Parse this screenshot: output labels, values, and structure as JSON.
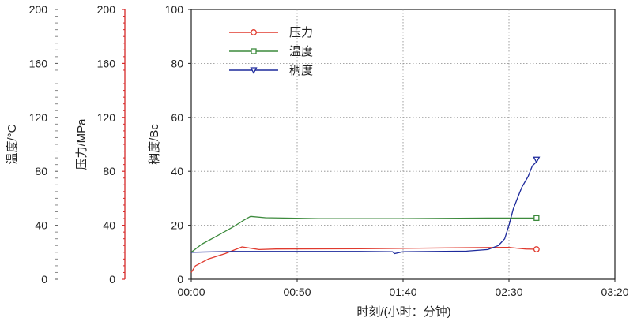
{
  "chart_data": {
    "type": "line",
    "xlabel": "时刻/(小时：分钟)",
    "x_ticks": [
      "00:00",
      "00:50",
      "01:40",
      "02:30",
      "03:20"
    ],
    "xlim_minutes": [
      0,
      200
    ],
    "axes": {
      "temperature": {
        "label": "温度/°C",
        "ylim": [
          0,
          200
        ],
        "ticks": [
          "0",
          "40",
          "80",
          "120",
          "160",
          "200"
        ],
        "color": "#444444"
      },
      "pressure": {
        "label": "压力/MPa",
        "ylim": [
          0,
          200
        ],
        "ticks": [
          "0",
          "40",
          "80",
          "120",
          "160",
          "200"
        ],
        "color": "#d62a2a"
      },
      "consistency": {
        "label": "稠度/Bc",
        "ylim": [
          0,
          100
        ],
        "ticks": [
          "0",
          "20",
          "40",
          "60",
          "80",
          "100"
        ],
        "color": "#1f1f1f"
      }
    },
    "grid": true,
    "legend_position": "top-left",
    "series": [
      {
        "name": "压力",
        "color": "#e03a2e",
        "marker": "circle",
        "axis": "consistency",
        "x": [
          0,
          2,
          8,
          16,
          24,
          28,
          32,
          40,
          80,
          120,
          150,
          155,
          158,
          163
        ],
        "y": [
          2.5,
          5,
          7.5,
          9.5,
          12,
          11.5,
          11,
          11.2,
          11.3,
          11.6,
          11.8,
          11.4,
          11.2,
          11.1
        ]
      },
      {
        "name": "温度",
        "color": "#3c8a3c",
        "marker": "square",
        "axis": "consistency",
        "x": [
          0,
          5,
          12,
          20,
          25,
          28,
          35,
          60,
          100,
          140,
          163
        ],
        "y": [
          10,
          13,
          16,
          19.5,
          22,
          23.3,
          22.8,
          22.5,
          22.5,
          22.7,
          22.7
        ]
      },
      {
        "name": "稠度",
        "color": "#1d2a9c",
        "marker": "triangle",
        "axis": "consistency",
        "x": [
          0,
          20,
          40,
          80,
          95,
          96,
          100,
          130,
          140,
          145,
          148,
          150,
          152,
          154,
          156,
          159,
          161,
          163
        ],
        "y": [
          10,
          10.3,
          10.3,
          10.3,
          10.2,
          9.5,
          10.2,
          10.4,
          11,
          12.5,
          15,
          20,
          26,
          30,
          34,
          38,
          42,
          43.5
        ]
      }
    ]
  }
}
